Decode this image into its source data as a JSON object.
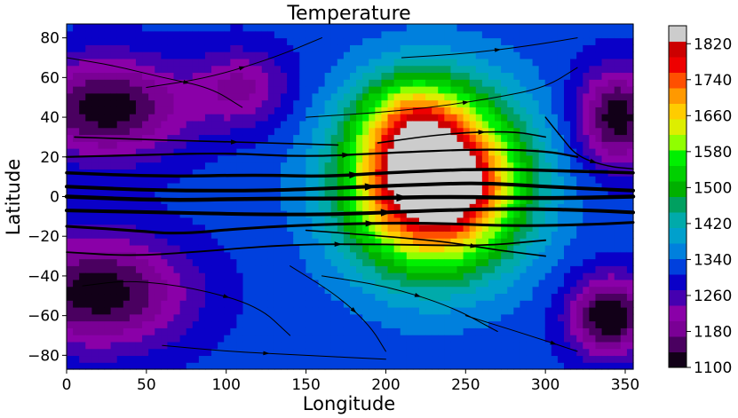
{
  "chart_data": {
    "type": "heatmap",
    "title": "Temperature",
    "xlabel": "Longitude",
    "ylabel": "Latitude",
    "xlim": [
      0,
      355
    ],
    "ylim": [
      -87,
      87
    ],
    "x_ticks": [
      0,
      50,
      100,
      150,
      200,
      250,
      300,
      350
    ],
    "y_ticks": [
      -80,
      -60,
      -40,
      -20,
      0,
      20,
      40,
      60,
      80
    ],
    "colorbar": {
      "min": 1100,
      "max": 1860,
      "ticks": [
        1100,
        1180,
        1260,
        1340,
        1420,
        1500,
        1580,
        1660,
        1740,
        1820
      ]
    },
    "field_blobs": [
      {
        "lon": 230,
        "lat": 8,
        "amp": 660,
        "slon": 52,
        "slat": 42
      },
      {
        "lon": 215,
        "lat": 40,
        "amp": 140,
        "slon": 30,
        "slat": 22
      },
      {
        "lon": 240,
        "lat": 5,
        "amp": 100,
        "slon": 18,
        "slat": 12
      },
      {
        "lon": 25,
        "lat": 45,
        "amp": -210,
        "slon": 50,
        "slat": 25
      },
      {
        "lon": 20,
        "lat": -48,
        "amp": -210,
        "slon": 55,
        "slat": 28
      },
      {
        "lon": 340,
        "lat": -60,
        "amp": -230,
        "slon": 25,
        "slat": 20
      },
      {
        "lon": 345,
        "lat": 40,
        "amp": -210,
        "slon": 25,
        "slat": 25
      },
      {
        "lon": 110,
        "lat": 55,
        "amp": -120,
        "slon": 30,
        "slat": 20
      }
    ],
    "field_background": 1320,
    "streamlines": [
      {
        "points": [
          [
            0,
            12
          ],
          [
            60,
            10
          ],
          [
            120,
            11
          ],
          [
            160,
            10
          ],
          [
            200,
            12
          ],
          [
            260,
            14
          ],
          [
            310,
            13
          ],
          [
            355,
            12
          ]
        ],
        "width": 3.5
      },
      {
        "points": [
          [
            0,
            5
          ],
          [
            60,
            3
          ],
          [
            120,
            3
          ],
          [
            160,
            4
          ],
          [
            220,
            6
          ],
          [
            260,
            7
          ],
          [
            300,
            5
          ],
          [
            355,
            3
          ]
        ],
        "width": 4
      },
      {
        "points": [
          [
            0,
            0
          ],
          [
            60,
            -2
          ],
          [
            120,
            -1
          ],
          [
            180,
            -1
          ],
          [
            240,
            0
          ],
          [
            300,
            -1
          ],
          [
            355,
            0
          ]
        ],
        "width": 4.5
      },
      {
        "points": [
          [
            0,
            -7
          ],
          [
            60,
            -8
          ],
          [
            120,
            -9
          ],
          [
            170,
            -9
          ],
          [
            230,
            -7
          ],
          [
            280,
            -6
          ],
          [
            330,
            -7
          ],
          [
            355,
            -8
          ]
        ],
        "width": 4
      },
      {
        "points": [
          [
            0,
            -15
          ],
          [
            40,
            -17
          ],
          [
            70,
            -19
          ],
          [
            110,
            -16
          ],
          [
            160,
            -14
          ],
          [
            220,
            -13
          ],
          [
            280,
            -15
          ],
          [
            330,
            -14
          ],
          [
            355,
            -13
          ]
        ],
        "width": 3
      },
      {
        "points": [
          [
            0,
            20
          ],
          [
            50,
            21
          ],
          [
            100,
            22
          ],
          [
            150,
            20
          ],
          [
            200,
            22
          ],
          [
            260,
            24
          ],
          [
            300,
            23
          ],
          [
            320,
            20
          ]
        ],
        "width": 2.2
      },
      {
        "points": [
          [
            5,
            30
          ],
          [
            40,
            29
          ],
          [
            80,
            28
          ],
          [
            130,
            27
          ],
          [
            170,
            26
          ]
        ],
        "width": 1.6
      },
      {
        "points": [
          [
            195,
            27
          ],
          [
            240,
            32
          ],
          [
            280,
            33
          ],
          [
            300,
            30
          ]
        ],
        "width": 1.6
      },
      {
        "points": [
          [
            0,
            -28
          ],
          [
            40,
            -30
          ],
          [
            80,
            -28
          ],
          [
            140,
            -24
          ],
          [
            200,
            -24
          ],
          [
            260,
            -25
          ],
          [
            300,
            -22
          ]
        ],
        "width": 1.8
      },
      {
        "points": [
          [
            150,
            -17
          ],
          [
            200,
            -20
          ],
          [
            240,
            -23
          ],
          [
            270,
            -27
          ],
          [
            300,
            -30
          ]
        ],
        "width": 1.6
      },
      {
        "points": [
          [
            10,
            -45
          ],
          [
            40,
            -42
          ],
          [
            80,
            -46
          ],
          [
            120,
            -55
          ],
          [
            140,
            -70
          ]
        ],
        "width": 1
      },
      {
        "points": [
          [
            160,
            -40
          ],
          [
            200,
            -45
          ],
          [
            240,
            -55
          ],
          [
            270,
            -68
          ]
        ],
        "width": 1
      },
      {
        "points": [
          [
            150,
            40
          ],
          [
            190,
            42
          ],
          [
            230,
            45
          ],
          [
            270,
            50
          ],
          [
            300,
            55
          ],
          [
            320,
            65
          ]
        ],
        "width": 1
      },
      {
        "points": [
          [
            50,
            55
          ],
          [
            90,
            60
          ],
          [
            130,
            70
          ],
          [
            160,
            80
          ]
        ],
        "width": 1
      },
      {
        "points": [
          [
            210,
            70
          ],
          [
            250,
            72
          ],
          [
            290,
            76
          ],
          [
            320,
            80
          ]
        ],
        "width": 1
      },
      {
        "points": [
          [
            0,
            70
          ],
          [
            30,
            66
          ],
          [
            60,
            60
          ],
          [
            90,
            55
          ],
          [
            110,
            45
          ]
        ],
        "width": 1
      },
      {
        "points": [
          [
            300,
            40
          ],
          [
            310,
            30
          ],
          [
            320,
            20
          ],
          [
            340,
            15
          ],
          [
            355,
            14
          ]
        ],
        "width": 1.4
      },
      {
        "points": [
          [
            60,
            -75
          ],
          [
            100,
            -78
          ],
          [
            150,
            -80
          ],
          [
            200,
            -82
          ]
        ],
        "width": 1
      },
      {
        "points": [
          [
            250,
            -60
          ],
          [
            290,
            -70
          ],
          [
            320,
            -78
          ]
        ],
        "width": 1
      },
      {
        "points": [
          [
            140,
            -35
          ],
          [
            170,
            -50
          ],
          [
            190,
            -65
          ],
          [
            200,
            -78
          ]
        ],
        "width": 1
      }
    ]
  }
}
